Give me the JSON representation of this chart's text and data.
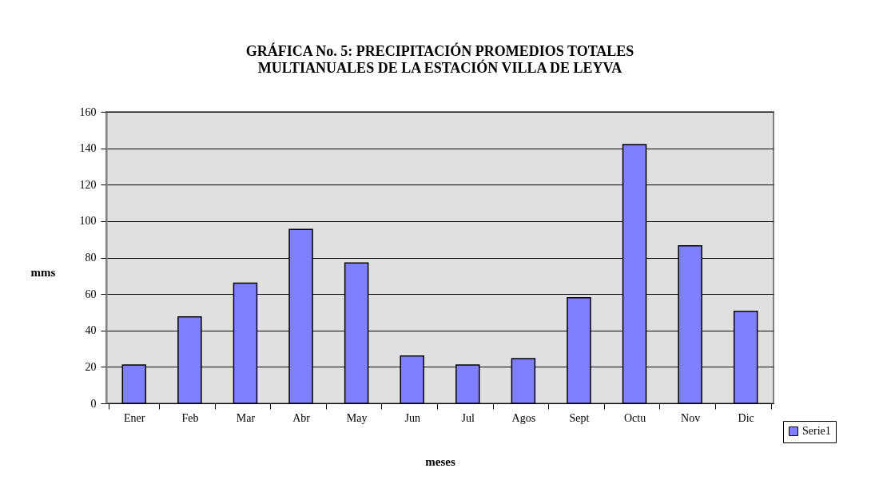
{
  "chart_data": {
    "type": "bar",
    "title": "GRÁFICA No. 5: PRECIPITACIÓN PROMEDIOS TOTALES\nMULTIANUALES DE LA ESTACIÓN VILLA DE LEYVA",
    "xlabel": "meses",
    "ylabel": "mms",
    "categories": [
      "Ener",
      "Feb",
      "Mar",
      "Abr",
      "May",
      "Jun",
      "Jul",
      "Agos",
      "Sept",
      "Octu",
      "Nov",
      "Dic"
    ],
    "series": [
      {
        "name": "Serie1",
        "color": "#8080ff",
        "values": [
          21,
          47.5,
          66,
          95.5,
          77,
          26,
          21,
          24.5,
          58,
          142,
          86.5,
          50.5
        ]
      }
    ],
    "ylim": [
      0,
      160
    ],
    "yticks": [
      0,
      20,
      40,
      60,
      80,
      100,
      120,
      140,
      160
    ],
    "grid": "y",
    "legend": "right"
  }
}
